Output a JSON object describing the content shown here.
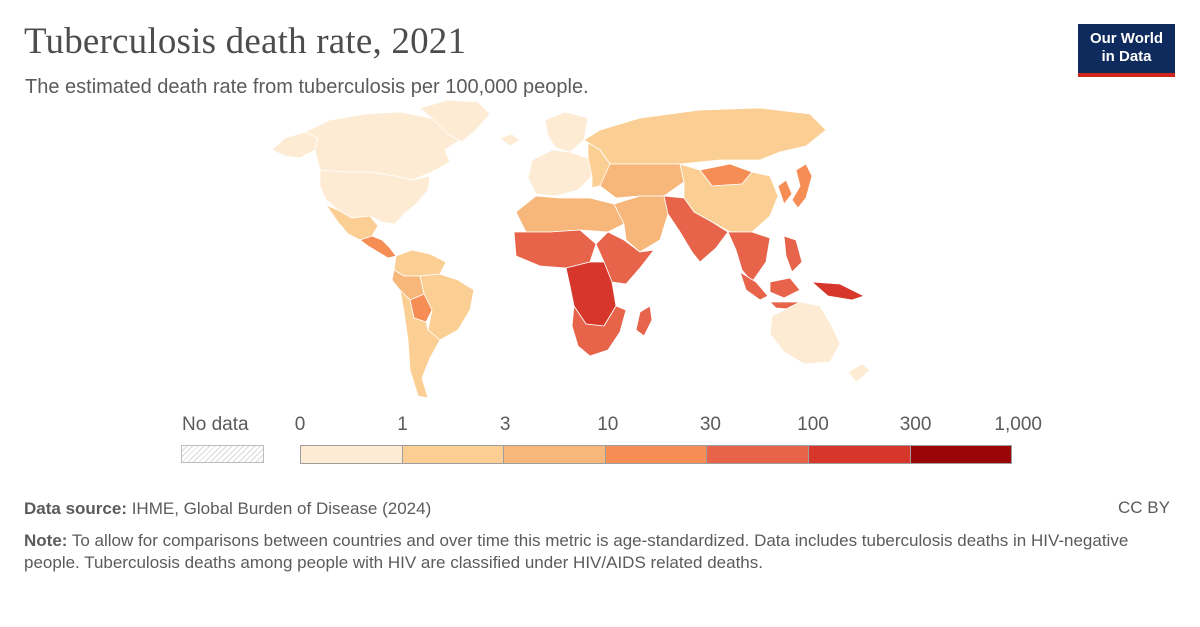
{
  "header": {
    "title": "Tuberculosis death rate, 2021",
    "subtitle": "The estimated death rate from tuberculosis per 100,000 people."
  },
  "logo": {
    "line1": "Our World",
    "line2": "in Data"
  },
  "legend": {
    "no_data_label": "No data",
    "ticks": [
      "0",
      "1",
      "3",
      "10",
      "30",
      "100",
      "300",
      "1,000"
    ],
    "colors": [
      "#fdebd3",
      "#fbcf93",
      "#f8b77a",
      "#f58d55",
      "#e7644a",
      "#d7372a",
      "#9c0505"
    ]
  },
  "footer": {
    "source_label": "Data source:",
    "source_text": " IHME, Global Burden of Disease (2024)",
    "license": "CC BY",
    "note_label": "Note:",
    "note_text": " To allow for comparisons between countries and over time this metric is age-standardized. Data includes tuberculosis deaths in HIV-negative people. Tuberculosis deaths among people with HIV are classified under HIV/AIDS related deaths."
  },
  "map": {
    "regions": [
      {
        "name": "canada",
        "color": "#fdebd3"
      },
      {
        "name": "alaska",
        "color": "#fdebd3"
      },
      {
        "name": "greenland",
        "color": "#fdebd3"
      },
      {
        "name": "usa",
        "color": "#fdebd3"
      },
      {
        "name": "mexico",
        "color": "#fbcf93"
      },
      {
        "name": "central-america",
        "color": "#f58d55"
      },
      {
        "name": "south-america-north",
        "color": "#fbcf93"
      },
      {
        "name": "brazil",
        "color": "#fbcf93"
      },
      {
        "name": "peru-bolivia",
        "color": "#f8b77a"
      },
      {
        "name": "bolivia",
        "color": "#f58d55"
      },
      {
        "name": "southern-cone",
        "color": "#fbcf93"
      },
      {
        "name": "iceland",
        "color": "#fdebd3"
      },
      {
        "name": "scandinavia",
        "color": "#fdebd3"
      },
      {
        "name": "western-europe",
        "color": "#fdebd3"
      },
      {
        "name": "eastern-europe",
        "color": "#fbcf93"
      },
      {
        "name": "russia",
        "color": "#fbcf93"
      },
      {
        "name": "central-asia",
        "color": "#f8b77a"
      },
      {
        "name": "mongolia",
        "color": "#f58d55"
      },
      {
        "name": "china",
        "color": "#fbcf93"
      },
      {
        "name": "korea-japan",
        "color": "#f58d55"
      },
      {
        "name": "north-africa",
        "color": "#f8b77a"
      },
      {
        "name": "middle-east",
        "color": "#f8b77a"
      },
      {
        "name": "south-asia",
        "color": "#e7644a"
      },
      {
        "name": "southeast-asia",
        "color": "#e7644a"
      },
      {
        "name": "west-africa",
        "color": "#e7644a"
      },
      {
        "name": "horn-of-africa",
        "color": "#e7644a"
      },
      {
        "name": "central-africa",
        "color": "#d7372a"
      },
      {
        "name": "southern-africa",
        "color": "#e7644a"
      },
      {
        "name": "madagascar",
        "color": "#e7644a"
      },
      {
        "name": "indonesia",
        "color": "#e7644a"
      },
      {
        "name": "philippines",
        "color": "#e7644a"
      },
      {
        "name": "new-guinea",
        "color": "#d7372a"
      },
      {
        "name": "australia",
        "color": "#fdebd3"
      },
      {
        "name": "new-zealand",
        "color": "#fdebd3"
      }
    ]
  }
}
